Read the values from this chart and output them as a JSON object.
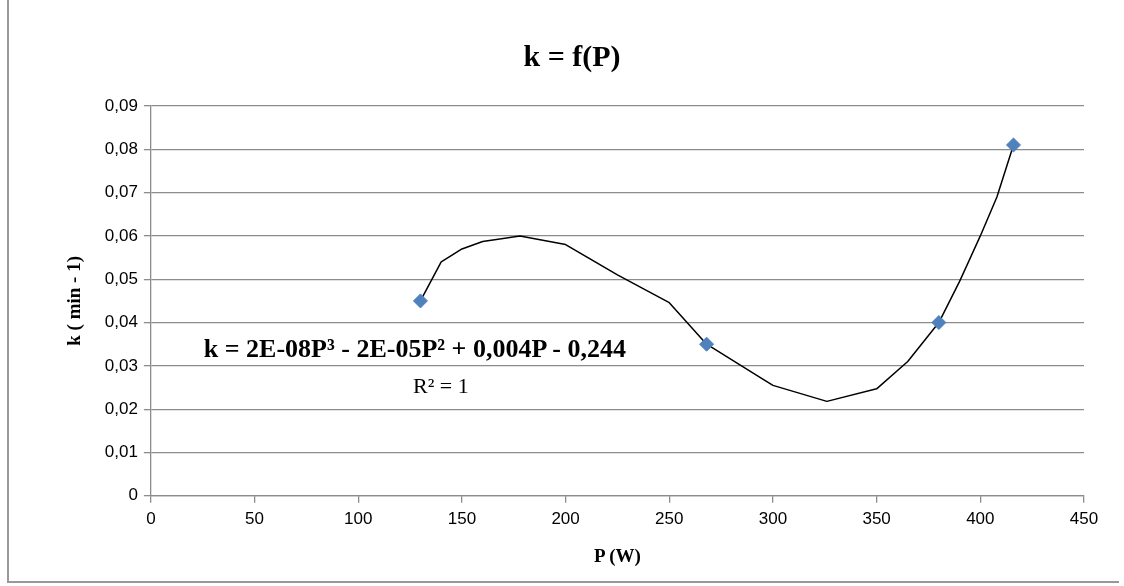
{
  "chart_data": {
    "type": "scatter",
    "title": "k = f(P)",
    "xlabel": "P (W)",
    "ylabel": "k ( min - 1)",
    "series": [
      {
        "type": "scatter",
        "color": "#4f81bd",
        "marker": "diamond",
        "x": [
          130,
          268,
          380,
          416
        ],
        "values": [
          0.045,
          0.035,
          0.04,
          0.081
        ]
      },
      {
        "type": "line",
        "color": "#000000",
        "marker": "none",
        "line_style": "solid",
        "x": [
          130,
          140,
          150,
          160,
          178,
          200,
          225,
          250,
          268,
          300,
          326,
          350,
          365,
          380,
          390,
          400,
          408,
          416
        ],
        "values": [
          0.045,
          0.054,
          0.057,
          0.0587,
          0.06,
          0.058,
          0.051,
          0.0446,
          0.035,
          0.0255,
          0.0218,
          0.0247,
          0.031,
          0.04,
          0.0495,
          0.06,
          0.069,
          0.081
        ]
      }
    ],
    "xlim": [
      0,
      450
    ],
    "xticks": [
      0,
      50,
      100,
      150,
      200,
      250,
      300,
      350,
      400,
      450
    ],
    "ylim": [
      0,
      0.09
    ],
    "yticks": [
      {
        "value": 0,
        "label": "0"
      },
      {
        "value": 0.01,
        "label": "0,01"
      },
      {
        "value": 0.02,
        "label": "0,02"
      },
      {
        "value": 0.03,
        "label": "0,03"
      },
      {
        "value": 0.04,
        "label": "0,04"
      },
      {
        "value": 0.05,
        "label": "0,05"
      },
      {
        "value": 0.06,
        "label": "0,06"
      },
      {
        "value": 0.07,
        "label": "0,07"
      },
      {
        "value": 0.08,
        "label": "0,08"
      },
      {
        "value": 0.09,
        "label": "0,09"
      }
    ],
    "grid": "y",
    "legend": false,
    "annotations": [
      "k = 2E-08P³ - 2E-05P² + 0,004P - 0,244",
      "R² = 1"
    ]
  }
}
